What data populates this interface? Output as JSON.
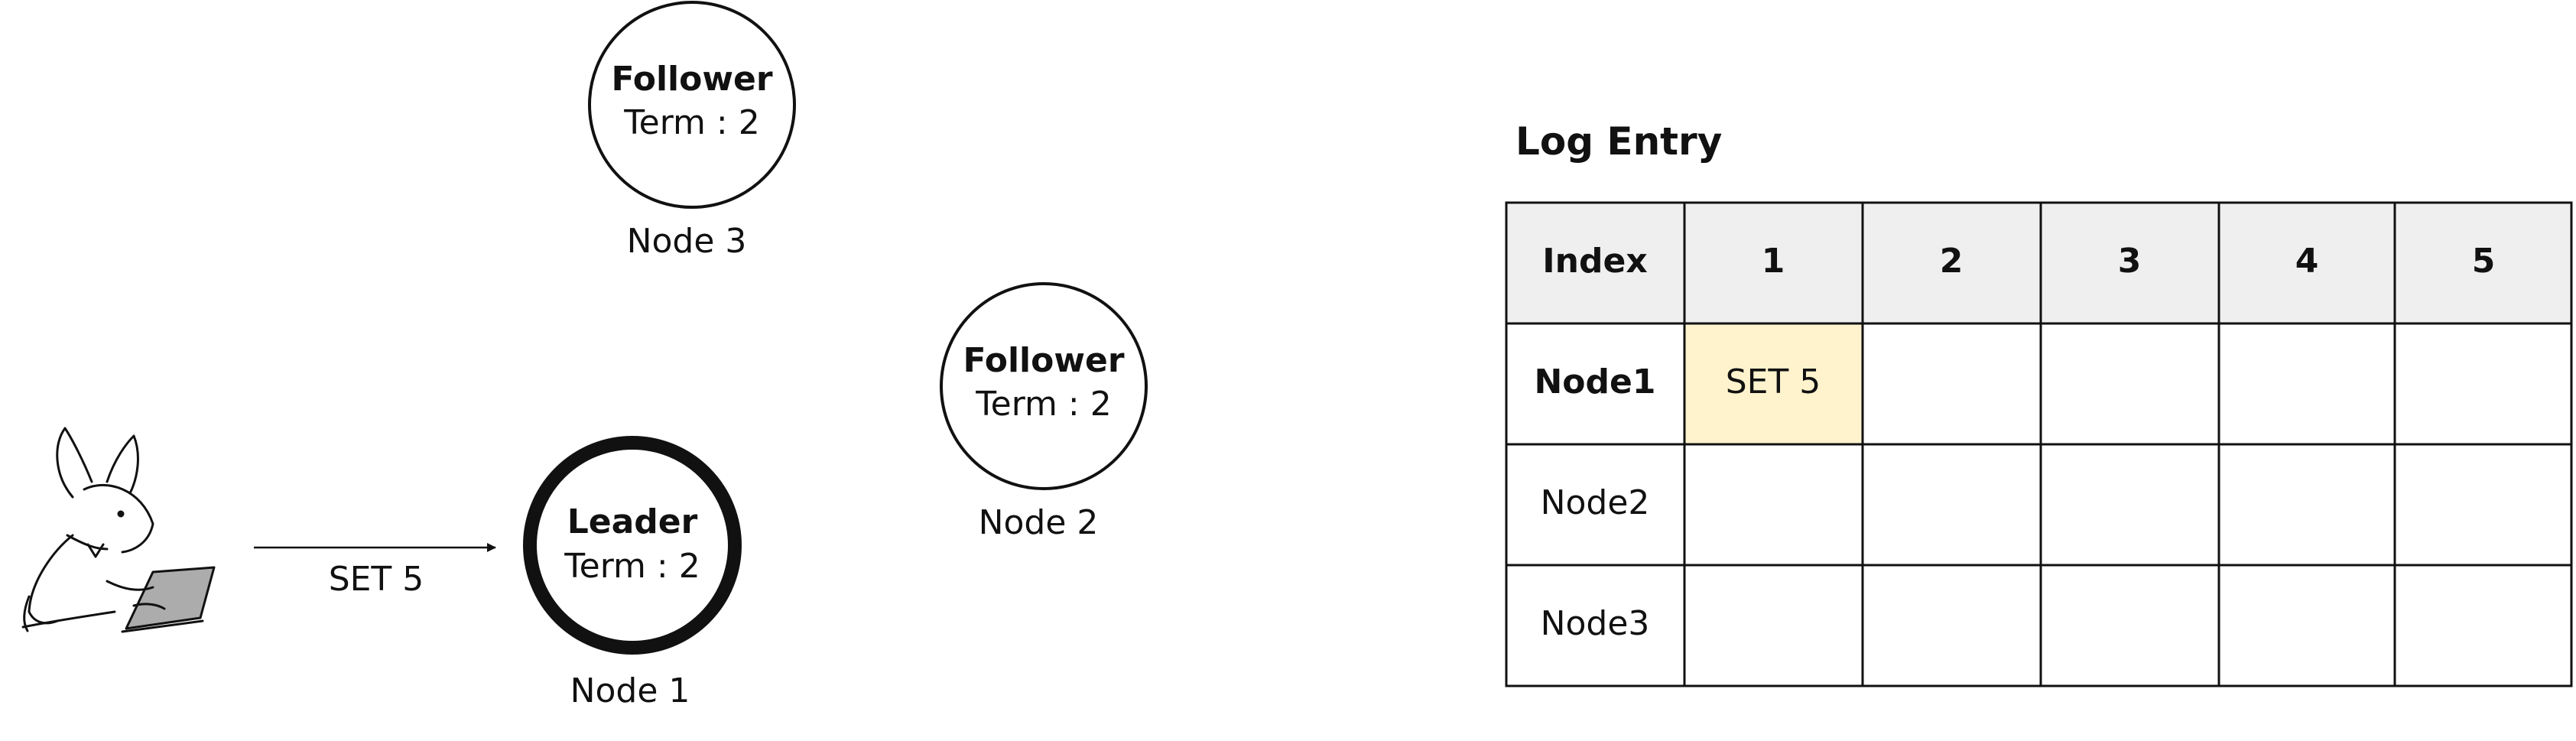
{
  "client": {
    "icon": "rabbit-with-laptop-icon",
    "request_label": "SET 5"
  },
  "nodes": [
    {
      "id": "node3",
      "role": "Follower",
      "term": "Term : 2",
      "name": "Node 3"
    },
    {
      "id": "node2",
      "role": "Follower",
      "term": "Term : 2",
      "name": "Node 2"
    },
    {
      "id": "node1",
      "role": "Leader",
      "term": "Term : 2",
      "name": "Node 1"
    }
  ],
  "log": {
    "title": "Log Entry",
    "header_label": "Index",
    "indexes": [
      "1",
      "2",
      "3",
      "4",
      "5"
    ],
    "rows": [
      {
        "name": "Node1",
        "bold": true,
        "cells": [
          "SET 5",
          "",
          "",
          "",
          ""
        ]
      },
      {
        "name": "Node2",
        "bold": false,
        "cells": [
          "",
          "",
          "",
          "",
          ""
        ]
      },
      {
        "name": "Node3",
        "bold": false,
        "cells": [
          "",
          "",
          "",
          "",
          ""
        ]
      }
    ],
    "colors": {
      "header_bg": "#efefef",
      "highlight_bg": "#fff3cd",
      "border": "#111111"
    }
  }
}
